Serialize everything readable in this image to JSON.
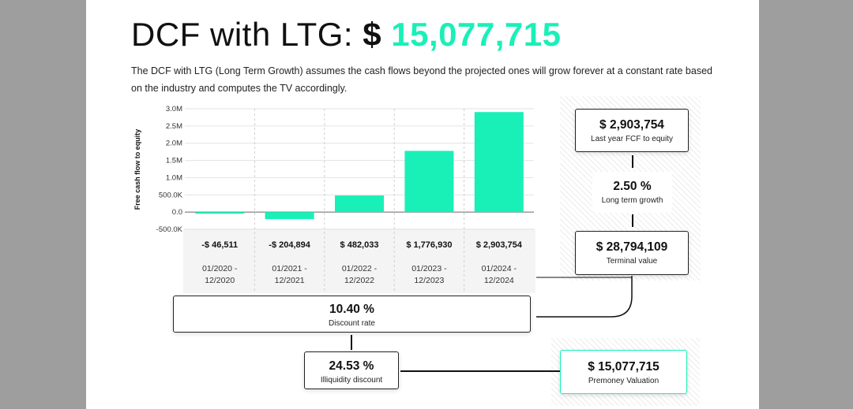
{
  "header": {
    "title_prefix": "DCF with LTG:",
    "title_currency": "$",
    "title_amount": "15,077,715",
    "description": "The DCF with LTG (Long Term Growth) assumes the cash flows beyond the projected ones will grow forever at a constant rate based on the industry and computes the TV accordingly."
  },
  "colors": {
    "accent": "#19f0b8",
    "page_bg": "#ffffff",
    "outer_bg": "#9e9e9e"
  },
  "chart_data": {
    "type": "bar",
    "ylabel": "Free cash flow to equity",
    "ylim": [
      -500000,
      3000000
    ],
    "yticks": [
      -500000,
      0,
      500000,
      1000000,
      1500000,
      2000000,
      2500000,
      3000000
    ],
    "ytick_labels": [
      "-500.0K",
      "0.0",
      "500.0K",
      "1.0M",
      "1.5M",
      "2.0M",
      "2.5M",
      "3.0M"
    ],
    "grid": true,
    "categories": [
      "01/2020 - 12/2020",
      "01/2021 - 12/2021",
      "01/2022 - 12/2022",
      "01/2023 - 12/2023",
      "01/2024 - 12/2024"
    ],
    "period_lines": [
      [
        "01/2020 -",
        "12/2020"
      ],
      [
        "01/2021 -",
        "12/2021"
      ],
      [
        "01/2022 -",
        "12/2022"
      ],
      [
        "01/2023 -",
        "12/2023"
      ],
      [
        "01/2024 -",
        "12/2024"
      ]
    ],
    "values": [
      -46511,
      -204894,
      482033,
      1776930,
      2903754
    ],
    "value_labels": [
      "-$ 46,511",
      "-$ 204,894",
      "$ 482,033",
      "$ 1,776,930",
      "$ 2,903,754"
    ],
    "bar_color": "#19f0b8"
  },
  "flow": {
    "last_fcf": {
      "value": "$ 2,903,754",
      "label": "Last year FCF to equity"
    },
    "ltg": {
      "value": "2.50 %",
      "label": "Long term growth"
    },
    "terminal": {
      "value": "$ 28,794,109",
      "label": "Terminal value"
    },
    "discount": {
      "value": "10.40 %",
      "label": "Discount rate"
    },
    "illiquidity": {
      "value": "24.53 %",
      "label": "Illiquidity discount"
    },
    "valuation": {
      "value": "$ 15,077,715",
      "label": "Premoney Valuation"
    }
  }
}
